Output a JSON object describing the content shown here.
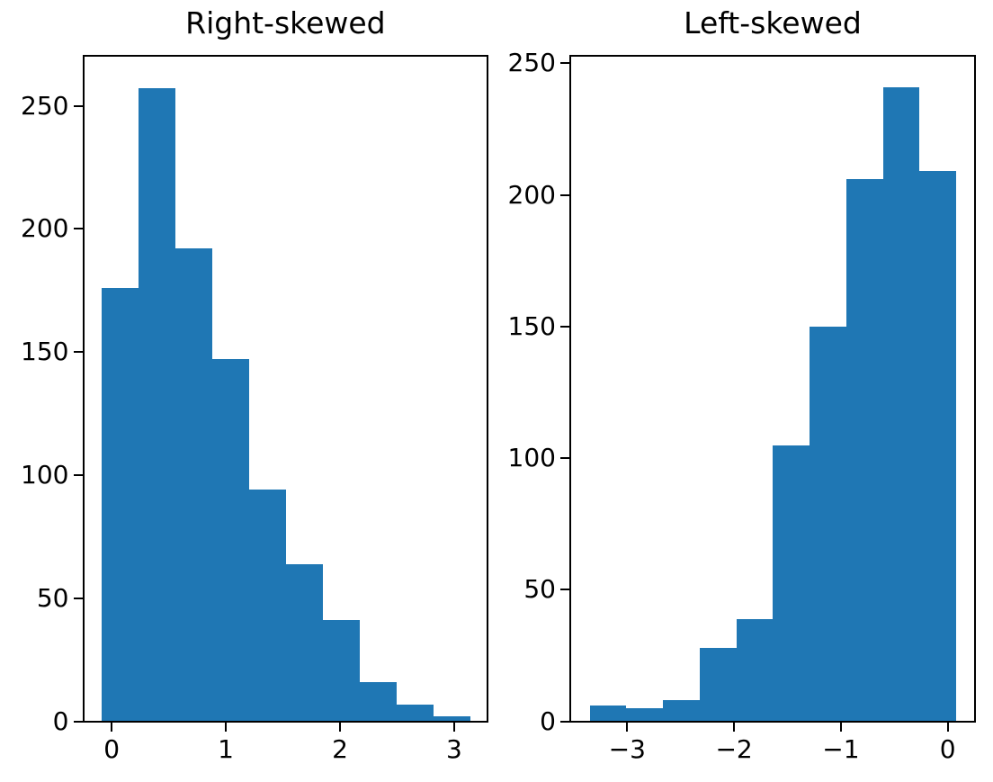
{
  "figure": {
    "background": "#ffffff",
    "bar_color": "#1f77b4",
    "spine_color": "#000000",
    "text_color": "#000000"
  },
  "chart_data": [
    {
      "type": "bar",
      "subtype": "histogram",
      "title": "Right-skewed",
      "xlabel": "",
      "ylabel": "",
      "grid": false,
      "legend": null,
      "bar_color": "#1f77b4",
      "bin_edges": [
        -0.087,
        0.236,
        0.559,
        0.882,
        1.205,
        1.529,
        1.852,
        2.175,
        2.498,
        2.821,
        3.144
      ],
      "counts": [
        176,
        257,
        192,
        147,
        94,
        64,
        41,
        16,
        7,
        2
      ],
      "xlim": [
        -0.249,
        3.294
      ],
      "ylim": [
        0,
        270.4
      ],
      "xtick_values": [
        0,
        1,
        2,
        3
      ],
      "xtick_labels": [
        "0",
        "1",
        "2",
        "3"
      ],
      "ytick_values": [
        0,
        50,
        100,
        150,
        200,
        250
      ],
      "ytick_labels": [
        "0",
        "50",
        "100",
        "150",
        "200",
        "250"
      ]
    },
    {
      "type": "bar",
      "subtype": "histogram",
      "title": "Left-skewed",
      "xlabel": "",
      "ylabel": "",
      "grid": false,
      "legend": null,
      "bar_color": "#1f77b4",
      "bin_edges": [
        -3.35,
        -3.007,
        -2.664,
        -2.321,
        -1.979,
        -1.636,
        -1.293,
        -0.95,
        -0.607,
        -0.264,
        0.079
      ],
      "counts": [
        6,
        5,
        8,
        28,
        39,
        105,
        150,
        206,
        241,
        209
      ],
      "xlim": [
        -3.533,
        0.255
      ],
      "ylim": [
        0,
        253.0
      ],
      "xtick_values": [
        -3,
        -2,
        -1,
        0
      ],
      "xtick_labels": [
        "−3",
        "−2",
        "−1",
        "0"
      ],
      "ytick_values": [
        0,
        50,
        100,
        150,
        200,
        250
      ],
      "ytick_labels": [
        "0",
        "50",
        "100",
        "150",
        "200",
        "250"
      ]
    }
  ]
}
